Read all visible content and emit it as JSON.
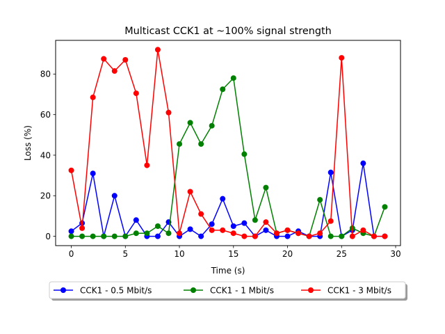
{
  "chart_data": {
    "type": "line",
    "title": "Multicast CCK1 at ~100% signal strength",
    "xlabel": "Time (s)",
    "ylabel": "Loss (%)",
    "xlim": [
      -1.45,
      30.45
    ],
    "ylim": [
      -4.6,
      96.6
    ],
    "xticks": [
      0,
      5,
      10,
      15,
      20,
      25,
      30
    ],
    "xtick_labels": [
      "0",
      "5",
      "10",
      "15",
      "20",
      "25",
      "30"
    ],
    "yticks": [
      0,
      20,
      40,
      60,
      80
    ],
    "ytick_labels": [
      "0",
      "20",
      "40",
      "60",
      "80"
    ],
    "grid": false,
    "legend_position": "below-center",
    "x": [
      0,
      1,
      2,
      3,
      4,
      5,
      6,
      7,
      8,
      9,
      10,
      11,
      12,
      13,
      14,
      15,
      16,
      17,
      18,
      19,
      20,
      21,
      22,
      23,
      24,
      25,
      26,
      27,
      28,
      29
    ],
    "series": [
      {
        "name": "CCK1 - 0.5 Mbit/s",
        "color": "#0000ff",
        "values": [
          2.5,
          6.5,
          31,
          0,
          20,
          0,
          8,
          0,
          0,
          7,
          0,
          3.5,
          0,
          6,
          18.5,
          5,
          6.5,
          0,
          3,
          0,
          0,
          2.5,
          0,
          0,
          31.5,
          0,
          3,
          36,
          0,
          0
        ]
      },
      {
        "name": "CCK1 - 1 Mbit/s",
        "color": "#008000",
        "values": [
          0,
          0,
          0,
          0,
          0,
          0,
          1.5,
          1.5,
          5,
          1.5,
          45.5,
          56,
          45.5,
          54.5,
          72.5,
          78,
          40.5,
          8,
          24,
          1.5,
          3,
          1.5,
          0,
          18,
          0,
          0,
          4,
          1.5,
          0,
          14.5
        ]
      },
      {
        "name": "CCK1 - 3 Mbit/s",
        "color": "#ff0000",
        "values": [
          32.5,
          4,
          68.5,
          87.5,
          81.5,
          87,
          70.5,
          35,
          92,
          61,
          1.5,
          22,
          11,
          3,
          3,
          1.5,
          0,
          0,
          7,
          1.5,
          3,
          1.5,
          0,
          1.5,
          7.5,
          88,
          0,
          3,
          0,
          0
        ]
      }
    ]
  }
}
